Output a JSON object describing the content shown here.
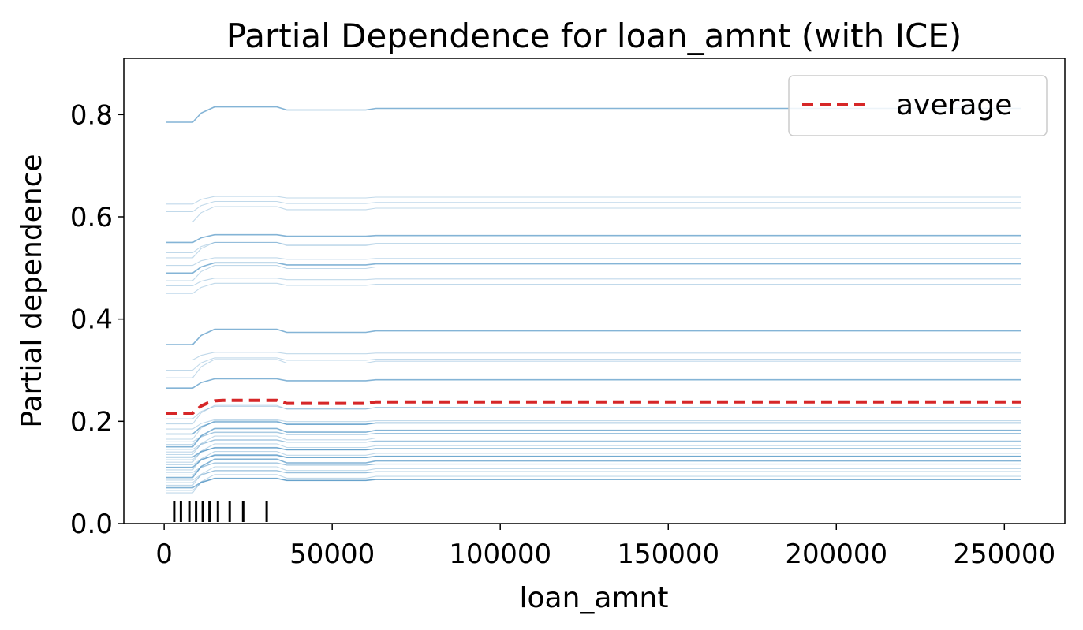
{
  "chart_data": {
    "type": "line",
    "title": "Partial Dependence for loan_amnt (with ICE)",
    "xlabel": "loan_amnt",
    "ylabel": "Partial dependence",
    "xlim": [
      -12000,
      268000
    ],
    "ylim": [
      0.0,
      0.91
    ],
    "x_ticks": [
      0,
      50000,
      100000,
      150000,
      200000,
      250000
    ],
    "y_ticks": [
      0.0,
      0.2,
      0.4,
      0.6,
      0.8
    ],
    "x_tick_labels": [
      "0",
      "50000",
      "100000",
      "150000",
      "200000",
      "250000"
    ],
    "y_tick_labels": [
      "0.0",
      "0.2",
      "0.4",
      "0.6",
      "0.8"
    ],
    "grid": false,
    "legend": {
      "position": "top-right",
      "entries": [
        {
          "label": "average",
          "color": "#d62728",
          "style": "dashed"
        }
      ]
    },
    "x": [
      500,
      3000,
      6000,
      8500,
      11000,
      13000,
      15000,
      17500,
      20000,
      25000,
      30000,
      33500,
      36500,
      50000,
      60000,
      63000,
      100000,
      150000,
      200000,
      255000
    ],
    "average": [
      0.216,
      0.216,
      0.216,
      0.216,
      0.23,
      0.236,
      0.24,
      0.241,
      0.241,
      0.241,
      0.241,
      0.241,
      0.235,
      0.235,
      0.235,
      0.238,
      0.238,
      0.238,
      0.238,
      0.238
    ],
    "ice_curves_note": "",
    "ice_base_levels": [
      0.785,
      0.625,
      0.61,
      0.59,
      0.55,
      0.53,
      0.52,
      0.505,
      0.49,
      0.475,
      0.465,
      0.45,
      0.35,
      0.32,
      0.3,
      0.285,
      0.265,
      0.205,
      0.195,
      0.185,
      0.175,
      0.165,
      0.16,
      0.155,
      0.15,
      0.145,
      0.14,
      0.135,
      0.13,
      0.125,
      0.12,
      0.115,
      0.11,
      0.105,
      0.1,
      0.095,
      0.09,
      0.085,
      0.08,
      0.075,
      0.07,
      0.065,
      0.06
    ],
    "rug_x": [
      3000,
      5000,
      7500,
      9500,
      11500,
      13500,
      16000,
      19500,
      23500,
      30500
    ],
    "colors": {
      "ice": "#1f77b4",
      "average": "#d62728",
      "rug": "#000000"
    }
  }
}
